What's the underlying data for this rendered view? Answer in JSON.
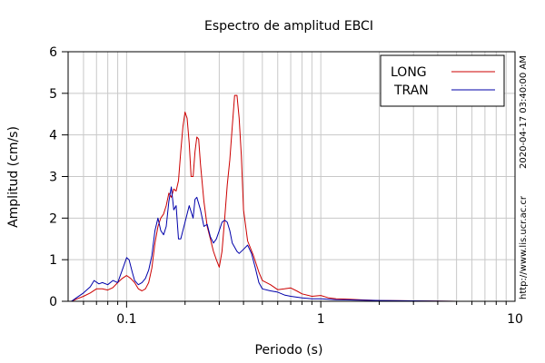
{
  "side_text": {
    "timestamp": "2020-04-17 03:40:00 AM",
    "url": "http://www.lis.ucr.ac.cr"
  },
  "chart_data": {
    "type": "line",
    "title": "Espectro de amplitud EBCI",
    "xlabel": "Periodo (s)",
    "ylabel": "Amplitud (cm/s)",
    "xscale": "log",
    "xlim": [
      0.05,
      10
    ],
    "ylim": [
      0,
      6
    ],
    "xticks": [
      {
        "v": 0.1,
        "label": "0.1"
      },
      {
        "v": 1,
        "label": "1"
      },
      {
        "v": 10,
        "label": "10"
      }
    ],
    "yticks": [
      0,
      1,
      2,
      3,
      4,
      5,
      6
    ],
    "grid": true,
    "legend": "top-right",
    "series": [
      {
        "name": "LONG",
        "color": "#cc0000",
        "points": [
          [
            0.052,
            0.0
          ],
          [
            0.055,
            0.05
          ],
          [
            0.06,
            0.12
          ],
          [
            0.065,
            0.2
          ],
          [
            0.07,
            0.3
          ],
          [
            0.075,
            0.3
          ],
          [
            0.08,
            0.27
          ],
          [
            0.085,
            0.33
          ],
          [
            0.09,
            0.45
          ],
          [
            0.095,
            0.55
          ],
          [
            0.1,
            0.62
          ],
          [
            0.105,
            0.55
          ],
          [
            0.11,
            0.45
          ],
          [
            0.115,
            0.3
          ],
          [
            0.12,
            0.25
          ],
          [
            0.125,
            0.3
          ],
          [
            0.13,
            0.45
          ],
          [
            0.135,
            0.8
          ],
          [
            0.14,
            1.4
          ],
          [
            0.145,
            1.8
          ],
          [
            0.15,
            2.0
          ],
          [
            0.155,
            2.1
          ],
          [
            0.16,
            2.3
          ],
          [
            0.165,
            2.6
          ],
          [
            0.17,
            2.5
          ],
          [
            0.175,
            2.7
          ],
          [
            0.18,
            2.65
          ],
          [
            0.185,
            2.9
          ],
          [
            0.19,
            3.6
          ],
          [
            0.195,
            4.2
          ],
          [
            0.2,
            4.55
          ],
          [
            0.205,
            4.4
          ],
          [
            0.21,
            3.8
          ],
          [
            0.215,
            3.0
          ],
          [
            0.22,
            3.0
          ],
          [
            0.225,
            3.6
          ],
          [
            0.23,
            3.95
          ],
          [
            0.235,
            3.9
          ],
          [
            0.24,
            3.3
          ],
          [
            0.25,
            2.4
          ],
          [
            0.26,
            1.8
          ],
          [
            0.27,
            1.5
          ],
          [
            0.28,
            1.2
          ],
          [
            0.29,
            1.0
          ],
          [
            0.3,
            0.82
          ],
          [
            0.31,
            1.2
          ],
          [
            0.32,
            2.0
          ],
          [
            0.33,
            2.8
          ],
          [
            0.34,
            3.4
          ],
          [
            0.35,
            4.2
          ],
          [
            0.36,
            4.95
          ],
          [
            0.37,
            4.95
          ],
          [
            0.38,
            4.4
          ],
          [
            0.39,
            3.5
          ],
          [
            0.4,
            2.2
          ],
          [
            0.42,
            1.45
          ],
          [
            0.45,
            1.1
          ],
          [
            0.48,
            0.7
          ],
          [
            0.5,
            0.5
          ],
          [
            0.55,
            0.4
          ],
          [
            0.6,
            0.28
          ],
          [
            0.65,
            0.3
          ],
          [
            0.7,
            0.32
          ],
          [
            0.75,
            0.25
          ],
          [
            0.8,
            0.18
          ],
          [
            0.9,
            0.12
          ],
          [
            1.0,
            0.14
          ],
          [
            1.1,
            0.08
          ],
          [
            1.2,
            0.06
          ],
          [
            1.4,
            0.05
          ],
          [
            1.7,
            0.03
          ],
          [
            2.0,
            0.02
          ],
          [
            3.0,
            0.01
          ],
          [
            5.0,
            0.0
          ],
          [
            10,
            0.0
          ]
        ]
      },
      {
        "name": "TRAN",
        "color": "#0000aa",
        "points": [
          [
            0.052,
            0.0
          ],
          [
            0.055,
            0.08
          ],
          [
            0.06,
            0.2
          ],
          [
            0.065,
            0.35
          ],
          [
            0.068,
            0.5
          ],
          [
            0.072,
            0.42
          ],
          [
            0.075,
            0.45
          ],
          [
            0.08,
            0.4
          ],
          [
            0.085,
            0.5
          ],
          [
            0.09,
            0.45
          ],
          [
            0.095,
            0.75
          ],
          [
            0.1,
            1.05
          ],
          [
            0.103,
            1.0
          ],
          [
            0.107,
            0.7
          ],
          [
            0.11,
            0.5
          ],
          [
            0.115,
            0.4
          ],
          [
            0.12,
            0.45
          ],
          [
            0.125,
            0.55
          ],
          [
            0.13,
            0.75
          ],
          [
            0.135,
            1.1
          ],
          [
            0.14,
            1.7
          ],
          [
            0.145,
            2.0
          ],
          [
            0.15,
            1.7
          ],
          [
            0.155,
            1.6
          ],
          [
            0.16,
            1.8
          ],
          [
            0.165,
            2.4
          ],
          [
            0.17,
            2.75
          ],
          [
            0.175,
            2.2
          ],
          [
            0.18,
            2.3
          ],
          [
            0.185,
            1.5
          ],
          [
            0.19,
            1.5
          ],
          [
            0.2,
            1.9
          ],
          [
            0.21,
            2.3
          ],
          [
            0.22,
            2.0
          ],
          [
            0.225,
            2.45
          ],
          [
            0.23,
            2.5
          ],
          [
            0.24,
            2.2
          ],
          [
            0.25,
            1.8
          ],
          [
            0.26,
            1.85
          ],
          [
            0.27,
            1.55
          ],
          [
            0.28,
            1.4
          ],
          [
            0.29,
            1.5
          ],
          [
            0.3,
            1.7
          ],
          [
            0.31,
            1.9
          ],
          [
            0.32,
            1.95
          ],
          [
            0.33,
            1.9
          ],
          [
            0.34,
            1.7
          ],
          [
            0.35,
            1.4
          ],
          [
            0.36,
            1.3
          ],
          [
            0.37,
            1.2
          ],
          [
            0.38,
            1.15
          ],
          [
            0.4,
            1.25
          ],
          [
            0.42,
            1.35
          ],
          [
            0.44,
            1.15
          ],
          [
            0.46,
            0.8
          ],
          [
            0.48,
            0.45
          ],
          [
            0.5,
            0.3
          ],
          [
            0.55,
            0.25
          ],
          [
            0.6,
            0.22
          ],
          [
            0.65,
            0.15
          ],
          [
            0.7,
            0.12
          ],
          [
            0.8,
            0.08
          ],
          [
            0.9,
            0.06
          ],
          [
            1.0,
            0.06
          ],
          [
            1.2,
            0.04
          ],
          [
            1.5,
            0.03
          ],
          [
            2.0,
            0.02
          ],
          [
            3.0,
            0.01
          ],
          [
            5.0,
            0.0
          ],
          [
            10,
            0.0
          ]
        ]
      }
    ]
  }
}
